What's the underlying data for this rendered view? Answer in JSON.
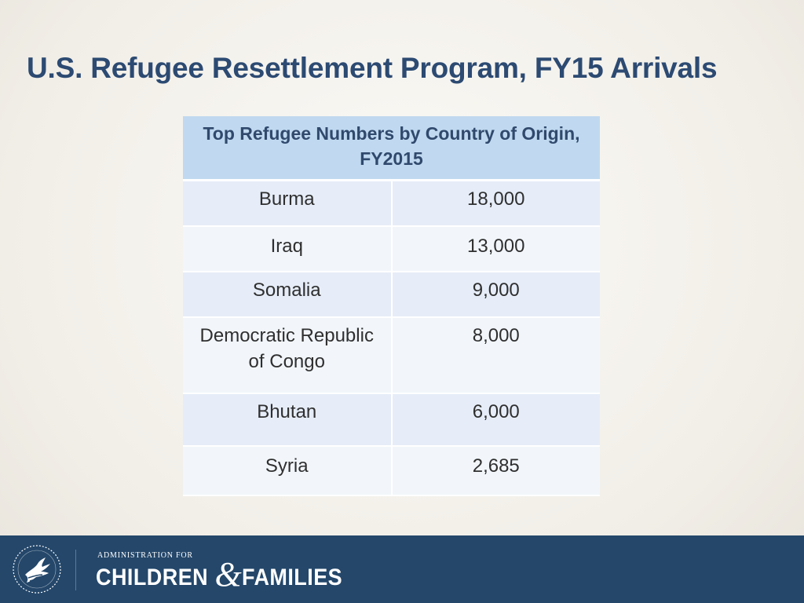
{
  "slide": {
    "title": "U.S. Refugee Resettlement Program, FY15 Arrivals"
  },
  "table": {
    "header": "Top Refugee Numbers by Country of Origin, FY2015",
    "rows": [
      {
        "country": "Burma",
        "count": "18,000"
      },
      {
        "country": "Iraq",
        "count": "13,000"
      },
      {
        "country": "Somalia",
        "count": "9,000"
      },
      {
        "country": "Democratic Republic of Congo",
        "count": "8,000"
      },
      {
        "country": "Bhutan",
        "count": "6,000"
      },
      {
        "country": "Syria",
        "count": "2,685"
      }
    ]
  },
  "footer": {
    "org_line": "ADMINISTRATION FOR",
    "org_word_1": "CHILDREN",
    "org_amp": "&",
    "org_word_2": "FAMILIES",
    "logo_icon": "hhs-eagle-icon",
    "colors": {
      "band": "#24476a",
      "title": "#2c4a72",
      "header": "#c0d9f0"
    }
  }
}
